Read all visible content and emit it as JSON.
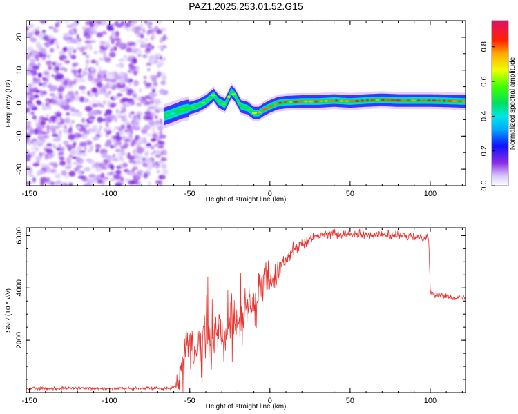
{
  "figure": {
    "title": "PAZ1.2025.253.01.52.G15"
  },
  "colors": {
    "snr_line": "#e8332f",
    "speckle": "#7a1fe0",
    "speckle_light": "#c9a8ff",
    "axis": "#000000"
  },
  "colorbar_stops": [
    {
      "v": 0.0,
      "c": "#ffffff"
    },
    {
      "v": 0.06,
      "c": "#d8c4ff"
    },
    {
      "v": 0.14,
      "c": "#8a2be2"
    },
    {
      "v": 0.24,
      "c": "#1010ff"
    },
    {
      "v": 0.34,
      "c": "#00a8ff"
    },
    {
      "v": 0.42,
      "c": "#00e6e6"
    },
    {
      "v": 0.5,
      "c": "#00e060"
    },
    {
      "v": 0.6,
      "c": "#40ff00"
    },
    {
      "v": 0.7,
      "c": "#f0ff00"
    },
    {
      "v": 0.8,
      "c": "#ffaa00"
    },
    {
      "v": 0.88,
      "c": "#ff2200"
    },
    {
      "v": 1.0,
      "c": "#e0106a"
    }
  ],
  "chart_data": [
    {
      "type": "heatmap",
      "title": "PAZ1.2025.253.01.52.G15",
      "xlabel": "Height of straight line (km)",
      "ylabel": "Frequency (Hz)",
      "xlim": [
        -152,
        122
      ],
      "ylim": [
        -25,
        25
      ],
      "xticks": [
        -150,
        -100,
        -50,
        0,
        50,
        100
      ],
      "xtick_labels": [
        "-150",
        "-100",
        "-50",
        "0",
        "50",
        "100"
      ],
      "yticks": [
        -20,
        -10,
        0,
        10,
        20
      ],
      "ytick_labels": [
        "-20",
        "-10",
        "0",
        "10",
        "20"
      ],
      "colorbar": {
        "label": "Normalized spectral amplitude",
        "range": [
          0,
          0.95
        ],
        "ticks": [
          0.0,
          0.2,
          0.4,
          0.6,
          0.8
        ],
        "tick_labels": [
          "0.0",
          "0.2",
          "0.4",
          "0.6",
          "0.8"
        ]
      },
      "noise_region_x": [
        -152,
        -65
      ],
      "ridge": {
        "x": [
          -66,
          -60,
          -55,
          -50,
          -45,
          -40,
          -35,
          -32,
          -28,
          -24,
          -22,
          -18,
          -14,
          -10,
          -7,
          -4,
          0,
          5,
          10,
          20,
          30,
          40,
          50,
          60,
          70,
          80,
          90,
          100,
          110,
          122
        ],
        "freq": [
          -4,
          -3,
          -2,
          -1.5,
          -0.8,
          0.5,
          2.5,
          0.5,
          -0.5,
          3.5,
          2.5,
          -1,
          -1.5,
          -3,
          -3,
          -2,
          -1,
          0,
          0.3,
          0.5,
          0.5,
          0.8,
          0.5,
          0.8,
          1,
          0.8,
          0.8,
          0.8,
          0.7,
          0.5
        ],
        "peak": [
          0.45,
          0.5,
          0.55,
          0.55,
          0.55,
          0.6,
          0.7,
          0.6,
          0.6,
          0.7,
          0.65,
          0.6,
          0.6,
          0.75,
          0.8,
          0.8,
          0.85,
          0.85,
          0.9,
          0.9,
          0.92,
          0.9,
          0.92,
          0.9,
          0.9,
          0.92,
          0.92,
          0.9,
          0.92,
          0.9
        ]
      }
    },
    {
      "type": "line",
      "xlabel": "Height of straight line (km)",
      "ylabel": "SNR (10 * v/v)",
      "xlim": [
        -152,
        122
      ],
      "ylim": [
        0,
        6300
      ],
      "xticks": [
        -150,
        -100,
        -50,
        0,
        50,
        100
      ],
      "xtick_labels": [
        "-150",
        "-100",
        "-50",
        "0",
        "50",
        "100"
      ],
      "yticks": [
        2000,
        4000,
        6000
      ],
      "ytick_labels": [
        "2000",
        "4000",
        "6000"
      ],
      "series": [
        {
          "name": "SNR",
          "x": [
            -152,
            -140,
            -120,
            -100,
            -80,
            -65,
            -60,
            -57,
            -55,
            -53,
            -50,
            -47,
            -44,
            -40,
            -36,
            -32,
            -28,
            -24,
            -20,
            -17,
            -15,
            -12,
            -9,
            -6,
            -3,
            0,
            3,
            6,
            10,
            13,
            16,
            20,
            25,
            30,
            35,
            40,
            45,
            50,
            55,
            60,
            65,
            70,
            75,
            80,
            85,
            90,
            95,
            99,
            100,
            102,
            105,
            110,
            115,
            122
          ],
          "mean": [
            150,
            150,
            160,
            160,
            150,
            170,
            200,
            350,
            1100,
            1800,
            1700,
            1400,
            2100,
            2200,
            2000,
            2500,
            1700,
            2700,
            2600,
            2800,
            3300,
            3500,
            3600,
            4100,
            4200,
            4300,
            4400,
            4800,
            5000,
            5300,
            5500,
            5650,
            5850,
            6000,
            6050,
            6100,
            6050,
            6100,
            6050,
            6050,
            6000,
            6050,
            6000,
            6000,
            5950,
            5950,
            5950,
            5950,
            3900,
            3750,
            3700,
            3700,
            3650,
            3600
          ],
          "noise": [
            70,
            70,
            70,
            70,
            70,
            70,
            80,
            300,
            700,
            900,
            900,
            800,
            900,
            900,
            900,
            1000,
            900,
            1000,
            900,
            900,
            900,
            800,
            700,
            600,
            600,
            600,
            600,
            500,
            450,
            350,
            300,
            250,
            200,
            180,
            180,
            180,
            180,
            180,
            180,
            180,
            180,
            180,
            180,
            180,
            180,
            180,
            180,
            180,
            150,
            120,
            120,
            120,
            120,
            120
          ]
        }
      ]
    }
  ]
}
